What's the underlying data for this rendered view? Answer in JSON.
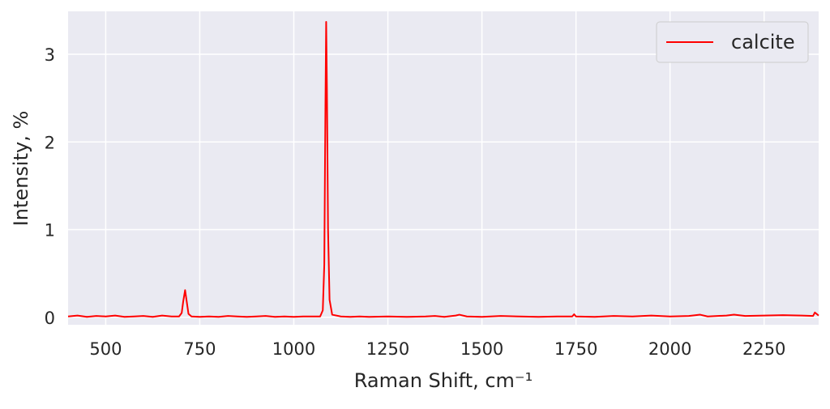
{
  "chart_data": {
    "type": "line",
    "xlabel": "Raman Shift, cm⁻¹",
    "ylabel": "Intensity, %",
    "x": [
      400,
      425,
      450,
      475,
      500,
      525,
      550,
      575,
      600,
      625,
      650,
      675,
      695,
      702,
      706,
      711,
      716,
      720,
      728,
      750,
      775,
      800,
      825,
      850,
      875,
      900,
      925,
      950,
      975,
      1000,
      1025,
      1050,
      1070,
      1077,
      1081,
      1084,
      1086,
      1088,
      1091,
      1095,
      1102,
      1125,
      1150,
      1175,
      1200,
      1250,
      1300,
      1350,
      1375,
      1400,
      1430,
      1440,
      1460,
      1500,
      1550,
      1600,
      1650,
      1700,
      1740,
      1745,
      1750,
      1800,
      1850,
      1900,
      1950,
      2000,
      2050,
      2080,
      2100,
      2150,
      2170,
      2200,
      2250,
      2300,
      2350,
      2380,
      2385,
      2395
    ],
    "series": [
      {
        "name": "calcite",
        "color": "#ff0000",
        "values": [
          0.01,
          0.02,
          0.005,
          0.015,
          0.01,
          0.02,
          0.005,
          0.01,
          0.015,
          0.005,
          0.02,
          0.01,
          0.01,
          0.05,
          0.18,
          0.31,
          0.16,
          0.04,
          0.01,
          0.005,
          0.01,
          0.005,
          0.015,
          0.01,
          0.005,
          0.01,
          0.015,
          0.005,
          0.01,
          0.005,
          0.01,
          0.01,
          0.01,
          0.08,
          0.6,
          2.4,
          3.37,
          2.6,
          1.0,
          0.2,
          0.03,
          0.01,
          0.005,
          0.01,
          0.005,
          0.01,
          0.005,
          0.01,
          0.015,
          0.005,
          0.02,
          0.03,
          0.01,
          0.005,
          0.015,
          0.01,
          0.005,
          0.01,
          0.01,
          0.035,
          0.01,
          0.005,
          0.015,
          0.01,
          0.02,
          0.01,
          0.015,
          0.03,
          0.01,
          0.02,
          0.03,
          0.015,
          0.02,
          0.025,
          0.02,
          0.015,
          0.055,
          0.02
        ]
      }
    ],
    "xlim": [
      400,
      2395
    ],
    "ylim": [
      -0.085,
      3.49
    ],
    "xticks": [
      500,
      750,
      1000,
      1250,
      1500,
      1750,
      2000,
      2250
    ],
    "yticks": [
      0,
      1,
      2,
      3
    ],
    "grid": true,
    "legend": "upper right"
  }
}
